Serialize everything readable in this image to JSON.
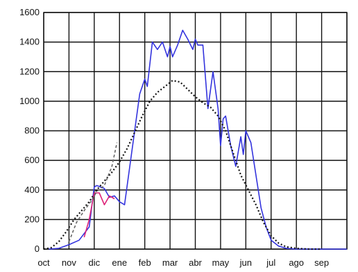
{
  "chart_data": {
    "type": "line",
    "title": "",
    "xlabel": "",
    "ylabel": "",
    "ylim": [
      0,
      1600
    ],
    "yticks": [
      0,
      200,
      400,
      600,
      800,
      1000,
      1200,
      1400,
      1600
    ],
    "categories": [
      "oct",
      "nov",
      "dic",
      "ene",
      "feb",
      "mar",
      "abr",
      "may",
      "jun",
      "jul",
      "ago",
      "sep"
    ],
    "grid": true,
    "legend": "none",
    "series": [
      {
        "color": "#3333dd",
        "style": "solid",
        "x": [
          0.2,
          0.6,
          1.0,
          1.4,
          1.8,
          2.0,
          2.1,
          2.4,
          2.6,
          2.8,
          3.0,
          3.2,
          3.4,
          3.6,
          3.8,
          4.0,
          4.1,
          4.3,
          4.5,
          4.7,
          4.9,
          5.0,
          5.1,
          5.3,
          5.5,
          5.7,
          5.9,
          6.0,
          6.1,
          6.3,
          6.5,
          6.7,
          6.9,
          7.0,
          7.1,
          7.2,
          7.4,
          7.6,
          7.8,
          7.9,
          8.0,
          8.2,
          8.4,
          8.6,
          8.8,
          9.0,
          9.3,
          9.6,
          10.0,
          10.5,
          11.0,
          11.5,
          12.0
        ],
        "values": [
          0,
          5,
          30,
          60,
          150,
          420,
          430,
          410,
          350,
          360,
          320,
          300,
          550,
          800,
          1050,
          1150,
          1100,
          1400,
          1350,
          1400,
          1300,
          1370,
          1300,
          1380,
          1480,
          1420,
          1350,
          1420,
          1380,
          1380,
          950,
          1200,
          950,
          700,
          880,
          900,
          700,
          560,
          760,
          640,
          800,
          720,
          500,
          280,
          150,
          60,
          20,
          5,
          0,
          0,
          0,
          0,
          0
        ]
      },
      {
        "color": "#111111",
        "style": "dotted",
        "x": [
          0.0,
          0.3,
          0.6,
          0.9,
          1.2,
          1.5,
          1.8,
          2.1,
          2.4,
          2.7,
          3.0,
          3.3,
          3.6,
          3.9,
          4.2,
          4.5,
          4.8,
          5.1,
          5.4,
          5.7,
          6.0,
          6.3,
          6.6,
          6.9,
          7.2,
          7.5,
          7.8,
          8.1,
          8.4,
          8.7,
          9.0,
          9.3,
          9.6,
          10.0,
          10.5,
          11.0
        ],
        "values": [
          0,
          10,
          50,
          120,
          200,
          260,
          320,
          400,
          460,
          520,
          590,
          680,
          790,
          900,
          1000,
          1060,
          1100,
          1140,
          1130,
          1080,
          1030,
          990,
          960,
          900,
          800,
          650,
          500,
          400,
          300,
          180,
          90,
          40,
          15,
          5,
          0,
          0
        ]
      },
      {
        "color": "#dd2277",
        "style": "solid",
        "x": [
          1.6,
          1.8,
          2.0,
          2.2,
          2.4,
          2.6,
          2.8
        ],
        "values": [
          80,
          200,
          380,
          380,
          300,
          360,
          340
        ]
      },
      {
        "color": "#666666",
        "style": "dashed",
        "x": [
          1.0,
          1.3,
          1.6,
          1.9,
          2.1,
          2.4,
          2.7,
          2.9
        ],
        "values": [
          50,
          180,
          260,
          330,
          390,
          430,
          560,
          720
        ]
      }
    ]
  }
}
